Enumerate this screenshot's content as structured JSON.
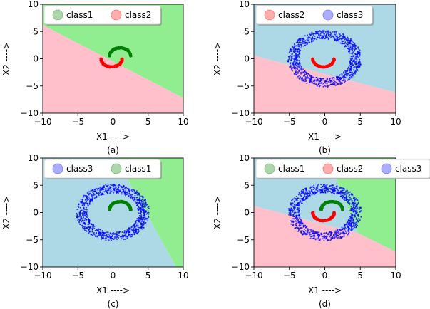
{
  "chart_data": [
    {
      "type": "scatter",
      "caption": "(a)",
      "xlabel": "X1 ---->",
      "ylabel": "X2 ---->",
      "xlim": [
        -10,
        10
      ],
      "ylim": [
        -10,
        10
      ],
      "xticks": [
        -10,
        -5,
        0,
        5,
        10
      ],
      "yticks": [
        -10,
        -5,
        0,
        5,
        10
      ],
      "legend": {
        "placement": "top",
        "entries": [
          "class1",
          "class2"
        ]
      },
      "regions": [
        {
          "class": "class2",
          "color": "#ffc0cb",
          "polygon": [
            [
              -10,
              -10
            ],
            [
              10,
              -10
            ],
            [
              10,
              -7.2
            ],
            [
              -10,
              6.2
            ]
          ]
        },
        {
          "class": "class1",
          "color": "#90ee90",
          "polygon": [
            [
              -10,
              6.2
            ],
            [
              10,
              -7.2
            ],
            [
              10,
              10
            ],
            [
              -10,
              10
            ]
          ]
        }
      ],
      "points": [
        {
          "class": "class1",
          "color": "#008000",
          "shape": "upper-arc",
          "cx": 1,
          "cy": 0.5,
          "r": 1.5,
          "from_deg": 0,
          "to_deg": 180
        },
        {
          "class": "class2",
          "color": "#ff0000",
          "shape": "lower-arc",
          "cx": -0.2,
          "cy": 0,
          "r": 1.5,
          "from_deg": 180,
          "to_deg": 360
        }
      ]
    },
    {
      "type": "scatter",
      "caption": "(b)",
      "xlabel": "X1 ---->",
      "ylabel": "X2 ---->",
      "xlim": [
        -10,
        10
      ],
      "ylim": [
        -10,
        10
      ],
      "xticks": [
        -10,
        -5,
        0,
        5,
        10
      ],
      "yticks": [
        -10,
        -5,
        0,
        5,
        10
      ],
      "legend": {
        "placement": "top",
        "entries": [
          "class2",
          "class3"
        ]
      },
      "regions": [
        {
          "class": "class2",
          "color": "#ffc0cb",
          "polygon": [
            [
              -10,
              -10
            ],
            [
              10,
              -10
            ],
            [
              10,
              -6.2
            ],
            [
              -10,
              0.6
            ]
          ]
        },
        {
          "class": "class3",
          "color": "#add8e6",
          "polygon": [
            [
              -10,
              0.6
            ],
            [
              10,
              -6.2
            ],
            [
              10,
              10
            ],
            [
              -10,
              10
            ]
          ]
        }
      ],
      "points": [
        {
          "class": "class3",
          "color": "#0000ff",
          "shape": "ring",
          "cx": 0,
          "cy": 0,
          "rmin": 3.6,
          "rmax": 5.2
        },
        {
          "class": "class2",
          "color": "#ff0000",
          "shape": "lower-arc",
          "cx": -0.2,
          "cy": 0,
          "r": 1.5,
          "from_deg": 180,
          "to_deg": 360
        }
      ]
    },
    {
      "type": "scatter",
      "caption": "(c)",
      "xlabel": "X1 ---->",
      "ylabel": "X2 ---->",
      "xlim": [
        -10,
        10
      ],
      "ylim": [
        -10,
        10
      ],
      "xticks": [
        -10,
        -5,
        0,
        5,
        10
      ],
      "yticks": [
        -10,
        -5,
        0,
        5,
        10
      ],
      "legend": {
        "placement": "top",
        "entries": [
          "class3",
          "class1"
        ]
      },
      "regions": [
        {
          "class": "class3",
          "color": "#add8e6",
          "polygon": [
            [
              -10,
              -10
            ],
            [
              9,
              -10
            ],
            [
              0.4,
              10
            ],
            [
              -10,
              10
            ]
          ]
        },
        {
          "class": "class1",
          "color": "#90ee90",
          "polygon": [
            [
              9,
              -10
            ],
            [
              10,
              -10
            ],
            [
              10,
              10
            ],
            [
              0.4,
              10
            ]
          ]
        }
      ],
      "points": [
        {
          "class": "class3",
          "color": "#0000ff",
          "shape": "ring",
          "cx": 0,
          "cy": 0,
          "rmin": 3.6,
          "rmax": 5.2
        },
        {
          "class": "class1",
          "color": "#008000",
          "shape": "upper-arc",
          "cx": 1,
          "cy": 0.5,
          "r": 1.5,
          "from_deg": 0,
          "to_deg": 180
        }
      ]
    },
    {
      "type": "scatter",
      "caption": "(d)",
      "xlabel": "X1 ---->",
      "ylabel": "X2 ---->",
      "xlim": [
        -10,
        10
      ],
      "ylim": [
        -10,
        10
      ],
      "xticks": [
        -10,
        -5,
        0,
        5,
        10
      ],
      "yticks": [
        -10,
        -5,
        0,
        5,
        10
      ],
      "legend": {
        "placement": "top",
        "entries": [
          "class1",
          "class2",
          "class3"
        ]
      },
      "regions": [
        {
          "class": "class2",
          "color": "#ffc0cb",
          "polygon": [
            [
              -10,
              -10
            ],
            [
              10,
              -10
            ],
            [
              10,
              -7.2
            ],
            [
              4.7,
              -3.8
            ],
            [
              -10,
              1.2
            ]
          ]
        },
        {
          "class": "class3",
          "color": "#add8e6",
          "polygon": [
            [
              -10,
              1.2
            ],
            [
              4.7,
              -3.8
            ],
            [
              0.4,
              10
            ],
            [
              -10,
              10
            ]
          ]
        },
        {
          "class": "class1",
          "color": "#90ee90",
          "polygon": [
            [
              4.7,
              -3.8
            ],
            [
              10,
              -7.2
            ],
            [
              10,
              10
            ],
            [
              0.4,
              10
            ]
          ]
        }
      ],
      "points": [
        {
          "class": "class3",
          "color": "#0000ff",
          "shape": "ring",
          "cx": 0,
          "cy": 0,
          "rmin": 3.6,
          "rmax": 5.2
        },
        {
          "class": "class1",
          "color": "#008000",
          "shape": "upper-arc",
          "cx": 1,
          "cy": 0.5,
          "r": 1.5,
          "from_deg": 0,
          "to_deg": 180
        },
        {
          "class": "class2",
          "color": "#ff0000",
          "shape": "lower-arc",
          "cx": -0.2,
          "cy": 0,
          "r": 1.5,
          "from_deg": 180,
          "to_deg": 360
        }
      ]
    }
  ]
}
